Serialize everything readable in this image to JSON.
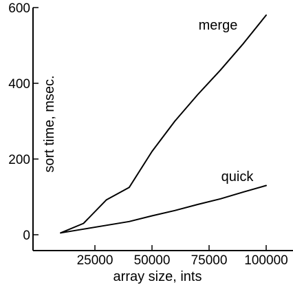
{
  "chart_data": {
    "type": "line",
    "xlabel": "array size, ints",
    "ylabel": "sort time, msec.",
    "xlim": [
      0,
      100000
    ],
    "ylim": [
      0,
      600
    ],
    "x_ticks": [
      25000,
      50000,
      75000,
      100000
    ],
    "x_tick_labels": [
      "25000",
      "50000",
      "75000",
      "100000"
    ],
    "y_ticks": [
      0,
      200,
      400,
      600
    ],
    "y_tick_labels": [
      "0",
      "200",
      "400",
      "600"
    ],
    "grid": false,
    "series": [
      {
        "name": "merge",
        "x": [
          10000,
          20000,
          30000,
          40000,
          50000,
          60000,
          70000,
          80000,
          90000,
          100000
        ],
        "y": [
          5,
          30,
          92,
          125,
          220,
          300,
          370,
          435,
          505,
          580
        ]
      },
      {
        "name": "quick",
        "x": [
          10000,
          20000,
          30000,
          40000,
          50000,
          60000,
          70000,
          80000,
          90000,
          100000
        ],
        "y": [
          5,
          15,
          25,
          35,
          50,
          64,
          80,
          95,
          113,
          130
        ]
      }
    ]
  }
}
